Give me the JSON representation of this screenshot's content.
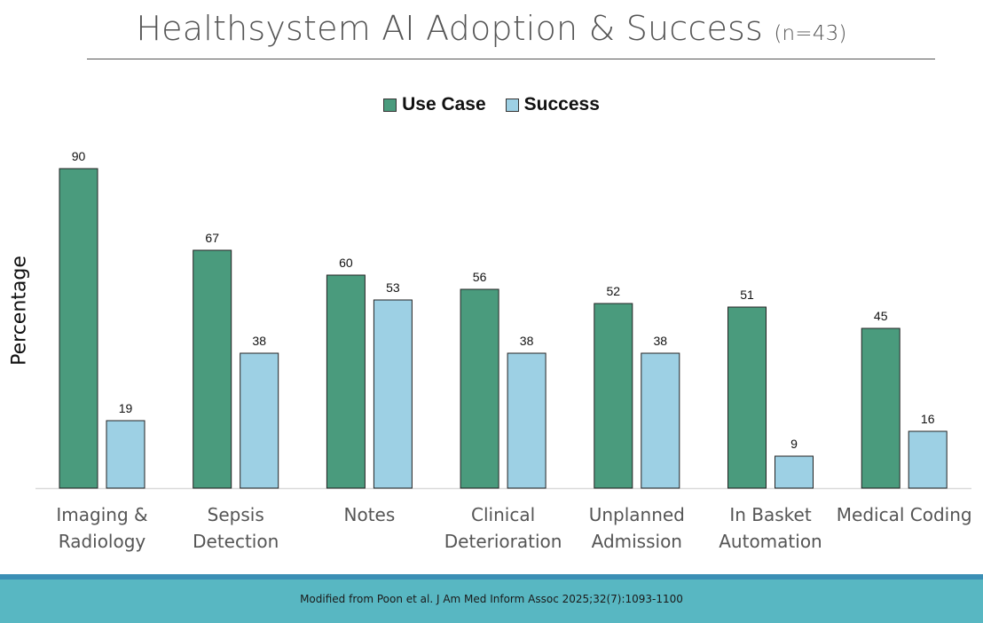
{
  "title": {
    "main": "Healthsystem AI Adoption & Success",
    "sample": "(n=43)"
  },
  "legend": {
    "use_case": "Use Case",
    "success": "Success"
  },
  "colors": {
    "use_case": "#4a9b7d",
    "success": "#9dd0e4",
    "footer": "#58b7c2"
  },
  "chart_data": {
    "type": "bar",
    "title": "Healthsystem AI Adoption & Success (n=43)",
    "xlabel": "",
    "ylabel": "Percentage",
    "ylim": [
      0,
      100
    ],
    "legend_position": "top-center",
    "grid": false,
    "categories": [
      [
        "Imaging &",
        "Radiology"
      ],
      [
        "Sepsis",
        "Detection"
      ],
      [
        "Notes"
      ],
      [
        "Clinical",
        "Deterioration"
      ],
      [
        "Unplanned",
        "Admission"
      ],
      [
        "In Basket",
        "Automation"
      ],
      [
        "Medical Coding"
      ]
    ],
    "series": [
      {
        "name": "Use Case",
        "values": [
          90,
          67,
          60,
          56,
          52,
          51,
          45
        ]
      },
      {
        "name": "Success",
        "values": [
          19,
          38,
          53,
          38,
          38,
          9,
          16
        ]
      }
    ]
  },
  "footer": {
    "citation": "Modified from Poon et al. J Am Med Inform Assoc 2025;32(7):1093-1100"
  }
}
